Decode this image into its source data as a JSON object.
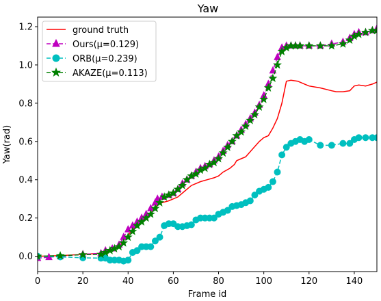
{
  "chart_data": {
    "type": "line",
    "title": "Yaw",
    "xlabel": "Frame id",
    "ylabel": "Yaw(rad)",
    "xlim": [
      0,
      150
    ],
    "ylim": [
      -0.08,
      1.25
    ],
    "xticks": [
      0,
      20,
      40,
      60,
      80,
      100,
      120,
      140
    ],
    "yticks": [
      0.0,
      0.2,
      0.4,
      0.6,
      0.8,
      1.0,
      1.2
    ],
    "xtick_labels": [
      "0",
      "20",
      "40",
      "60",
      "80",
      "100",
      "120",
      "140"
    ],
    "ytick_labels": [
      "0.0",
      "0.2",
      "0.4",
      "0.6",
      "0.8",
      "1.0",
      "1.2"
    ],
    "grid": false,
    "legend_position": "top-left",
    "series": [
      {
        "name": "ground truth",
        "color": "#ff0000",
        "dashed": false,
        "marker": "none",
        "x": [
          0,
          10,
          20,
          28,
          30,
          33,
          36,
          38,
          40,
          42,
          45,
          48,
          50,
          52,
          55,
          58,
          60,
          62,
          65,
          68,
          70,
          72,
          75,
          78,
          80,
          82,
          85,
          87,
          88,
          90,
          92,
          95,
          98,
          100,
          102,
          104,
          106,
          108,
          110,
          112,
          115,
          118,
          120,
          125,
          130,
          132,
          135,
          138,
          140,
          142,
          145,
          148,
          150
        ],
        "y": [
          0.0,
          0.003,
          0.01,
          0.015,
          0.025,
          0.035,
          0.05,
          0.08,
          0.11,
          0.14,
          0.17,
          0.2,
          0.23,
          0.26,
          0.28,
          0.29,
          0.3,
          0.31,
          0.34,
          0.37,
          0.38,
          0.39,
          0.4,
          0.41,
          0.42,
          0.44,
          0.46,
          0.48,
          0.5,
          0.51,
          0.52,
          0.56,
          0.6,
          0.62,
          0.63,
          0.67,
          0.72,
          0.8,
          0.915,
          0.92,
          0.915,
          0.9,
          0.89,
          0.88,
          0.865,
          0.86,
          0.86,
          0.865,
          0.89,
          0.895,
          0.89,
          0.9,
          0.91
        ]
      },
      {
        "name": "Ours(μ=0.129)",
        "color": "#bf00bf",
        "dashed": true,
        "marker": "triangle",
        "x": [
          0,
          5,
          10,
          20,
          28,
          30,
          33,
          36,
          38,
          40,
          42,
          44,
          46,
          48,
          50,
          52,
          53,
          55,
          58,
          60,
          62,
          64,
          66,
          68,
          70,
          72,
          74,
          76,
          78,
          80,
          82,
          84,
          86,
          88,
          90,
          92,
          94,
          96,
          98,
          100,
          102,
          104,
          106,
          108,
          110,
          112,
          114,
          116,
          120,
          125,
          130,
          135,
          138,
          140,
          142,
          145,
          148,
          150
        ],
        "y": [
          -0.01,
          -0.005,
          0.0,
          0.01,
          0.015,
          0.03,
          0.04,
          0.06,
          0.1,
          0.14,
          0.16,
          0.18,
          0.2,
          0.22,
          0.25,
          0.28,
          0.3,
          0.31,
          0.32,
          0.33,
          0.35,
          0.38,
          0.4,
          0.42,
          0.44,
          0.46,
          0.47,
          0.48,
          0.5,
          0.52,
          0.55,
          0.58,
          0.6,
          0.63,
          0.66,
          0.69,
          0.72,
          0.75,
          0.79,
          0.84,
          0.9,
          0.97,
          1.04,
          1.09,
          1.1,
          1.1,
          1.1,
          1.1,
          1.1,
          1.1,
          1.11,
          1.12,
          1.14,
          1.16,
          1.17,
          1.17,
          1.18,
          1.19
        ]
      },
      {
        "name": "ORB(μ=0.239)",
        "color": "#00bfbf",
        "dashed": true,
        "marker": "circle",
        "x": [
          0,
          10,
          20,
          28,
          30,
          32,
          34,
          36,
          38,
          40,
          42,
          44,
          46,
          48,
          50,
          52,
          54,
          56,
          58,
          60,
          62,
          64,
          66,
          68,
          70,
          72,
          74,
          76,
          78,
          80,
          82,
          84,
          86,
          88,
          90,
          92,
          94,
          96,
          98,
          100,
          102,
          104,
          106,
          108,
          110,
          112,
          114,
          116,
          118,
          120,
          125,
          130,
          135,
          138,
          140,
          142,
          145,
          148,
          150
        ],
        "y": [
          0.0,
          -0.003,
          -0.008,
          -0.01,
          -0.01,
          -0.02,
          -0.02,
          -0.02,
          -0.025,
          -0.02,
          0.02,
          0.03,
          0.05,
          0.05,
          0.05,
          0.08,
          0.1,
          0.16,
          0.17,
          0.17,
          0.155,
          0.155,
          0.16,
          0.165,
          0.19,
          0.2,
          0.2,
          0.2,
          0.2,
          0.22,
          0.23,
          0.24,
          0.26,
          0.265,
          0.27,
          0.28,
          0.29,
          0.32,
          0.34,
          0.35,
          0.36,
          0.39,
          0.44,
          0.53,
          0.57,
          0.59,
          0.6,
          0.61,
          0.6,
          0.61,
          0.58,
          0.58,
          0.59,
          0.59,
          0.61,
          0.62,
          0.62,
          0.62,
          0.62
        ]
      },
      {
        "name": "AKAZE(μ=0.113)",
        "color": "#008000",
        "dashed": true,
        "marker": "star",
        "x": [
          0,
          10,
          20,
          28,
          30,
          32,
          34,
          36,
          38,
          40,
          42,
          44,
          46,
          48,
          50,
          52,
          54,
          56,
          58,
          60,
          62,
          64,
          66,
          68,
          70,
          72,
          74,
          76,
          78,
          80,
          82,
          84,
          86,
          88,
          90,
          92,
          94,
          96,
          98,
          100,
          102,
          104,
          106,
          108,
          110,
          112,
          114,
          116,
          120,
          125,
          130,
          135,
          138,
          140,
          142,
          145,
          148,
          150
        ],
        "y": [
          0.0,
          0.003,
          0.008,
          0.01,
          0.02,
          0.03,
          0.04,
          0.05,
          0.07,
          0.1,
          0.13,
          0.16,
          0.18,
          0.2,
          0.22,
          0.25,
          0.28,
          0.31,
          0.32,
          0.33,
          0.35,
          0.37,
          0.4,
          0.42,
          0.43,
          0.45,
          0.46,
          0.48,
          0.49,
          0.51,
          0.54,
          0.57,
          0.6,
          0.63,
          0.65,
          0.68,
          0.71,
          0.74,
          0.78,
          0.82,
          0.88,
          0.93,
          1.0,
          1.07,
          1.09,
          1.1,
          1.1,
          1.1,
          1.1,
          1.1,
          1.1,
          1.11,
          1.13,
          1.15,
          1.16,
          1.17,
          1.18,
          1.18
        ]
      }
    ]
  }
}
